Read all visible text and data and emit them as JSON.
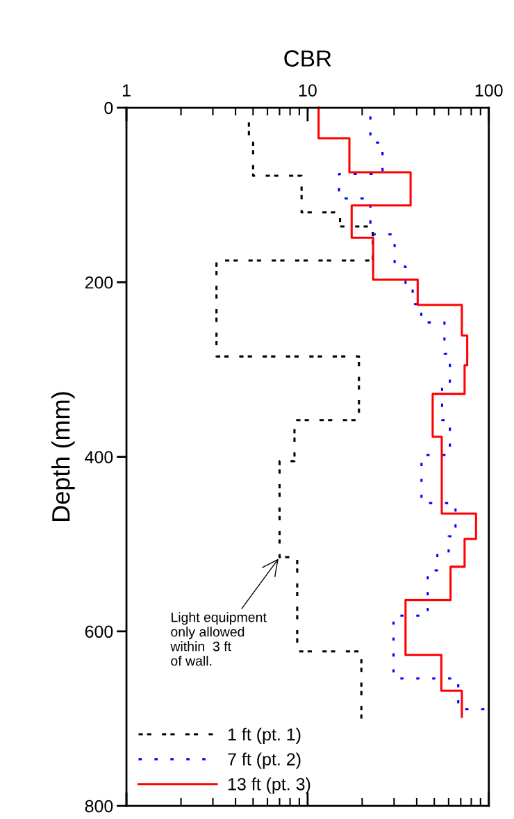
{
  "chart_data": {
    "type": "line",
    "xlabel": "CBR",
    "ylabel": "Depth (mm)",
    "log": "x",
    "xlim": [
      1,
      100
    ],
    "xticks": [
      1,
      10,
      100
    ],
    "ylim": [
      800,
      0
    ],
    "yticks": [
      0,
      200,
      400,
      600,
      800
    ],
    "tick_labels": "xy",
    "grid": false,
    "legend": "bottom left",
    "marker": "none",
    "series": [
      {
        "name": "1 ft (pt. 1)",
        "color": "#000000",
        "line_style": "dashed",
        "x": [
          4.74,
          4.74,
          5.0,
          5.0,
          9.26,
          9.26,
          15.1,
          15.1,
          22.9,
          22.9,
          3.14,
          3.14,
          19.2,
          19.2,
          8.46,
          8.46,
          7.0,
          7.0,
          8.76,
          8.76,
          19.8,
          19.8
        ],
        "values": [
          15,
          40,
          40,
          78,
          78,
          120,
          120,
          136,
          136,
          175,
          175,
          285,
          285,
          358,
          358,
          405,
          405,
          515,
          515,
          623,
          623,
          700
        ]
      },
      {
        "name": "7 ft (pt. 2)",
        "color": "#0000ff",
        "line_style": "dotted",
        "x": [
          22.2,
          22.2,
          25.9,
          25.9,
          14.9,
          14.9,
          22.2,
          22.2,
          30.2,
          30.2,
          34.7,
          34.7,
          38,
          38,
          42.4,
          42.4,
          56.9,
          56.9,
          61,
          61,
          55.2,
          55.2,
          61,
          61,
          42.5,
          42.5,
          65.5,
          65.5,
          60,
          60,
          52,
          52,
          46,
          46,
          29.8,
          29.8,
          67.8,
          67.8,
          100
        ],
        "values": [
          10,
          40,
          40,
          76,
          76,
          104,
          104,
          145,
          145,
          182,
          182,
          205,
          205,
          225,
          225,
          246,
          246,
          282,
          282,
          314,
          314,
          358,
          358,
          398,
          398,
          453,
          453,
          491,
          491,
          510,
          510,
          530,
          530,
          582,
          582,
          654,
          654,
          689,
          689
        ]
      },
      {
        "name": "13 ft (pt. 3)",
        "color": "#ff0000",
        "line_style": "solid",
        "x": [
          11.5,
          11.5,
          17,
          17,
          37,
          37,
          17.5,
          17.5,
          23,
          23,
          40.5,
          40.5,
          71,
          71,
          76,
          76,
          73.5,
          73.5,
          49,
          49,
          55,
          55,
          85,
          85,
          73.5,
          73.5,
          61.5,
          61.5,
          34.7,
          34.7,
          54.7,
          54.7,
          71,
          71
        ],
        "values": [
          0,
          35,
          35,
          74,
          74,
          112,
          112,
          149,
          149,
          197,
          197,
          226,
          226,
          261,
          261,
          295,
          295,
          328,
          328,
          377,
          377,
          465,
          465,
          494,
          494,
          526,
          526,
          564,
          564,
          627,
          627,
          668,
          668,
          698
        ]
      }
    ],
    "annotations": [
      {
        "text": "Light equipment\nonly allowed\nwithin  3 ft\nof wall.",
        "x": 7.0,
        "y": 515
      }
    ]
  }
}
